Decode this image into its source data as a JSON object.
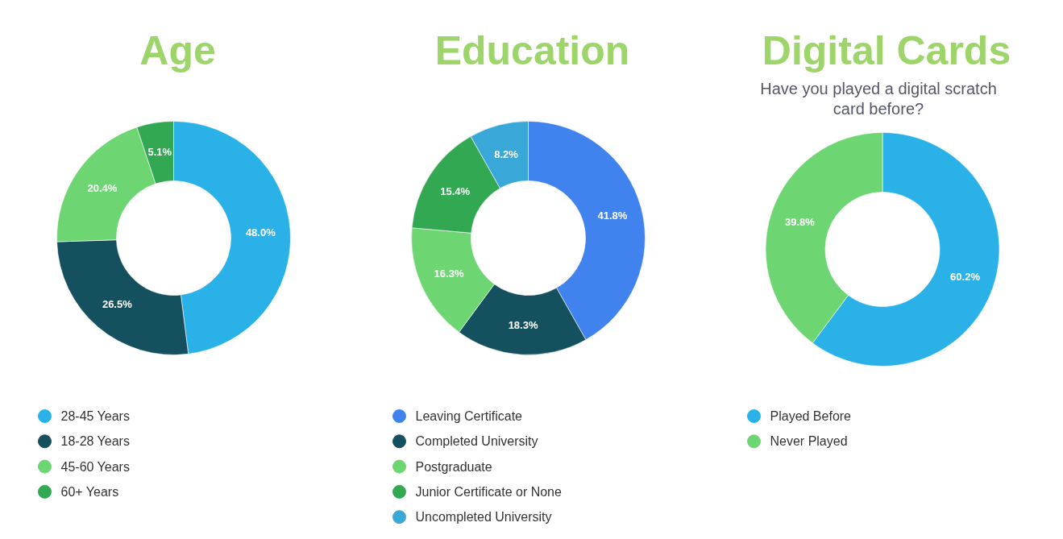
{
  "chart_data": [
    {
      "type": "donut",
      "title": "Age",
      "categories": [
        "28-45 Years",
        "18-28 Years",
        "45-60 Years",
        "60+ Years"
      ],
      "values": [
        48.0,
        26.5,
        20.4,
        5.1
      ],
      "colors": [
        "#29b1e8",
        "#15505f",
        "#6dd672",
        "#33a852"
      ],
      "value_labels": [
        "48.0%",
        "26.5%",
        "20.4%",
        "5.1%"
      ],
      "legend": "bottom"
    },
    {
      "type": "donut",
      "title": "Education",
      "categories": [
        "Leaving Certificate",
        "Completed University",
        "Postgraduate",
        "Junior Certificate or None",
        "Uncompleted University"
      ],
      "values": [
        41.8,
        18.3,
        16.3,
        15.4,
        8.2
      ],
      "colors": [
        "#4183ee",
        "#15505f",
        "#6dd672",
        "#33a852",
        "#3aa7d9"
      ],
      "value_labels": [
        "41.8%",
        "18.3%",
        "16.3%",
        "15.4%",
        "8.2%"
      ],
      "legend": "bottom"
    },
    {
      "type": "donut",
      "title": "Digital Cards",
      "subtitle": "Have you played a digital scratch card before?",
      "categories": [
        "Played Before",
        "Never Played"
      ],
      "values": [
        60.2,
        39.8
      ],
      "colors": [
        "#29b1e8",
        "#6dd672"
      ],
      "value_labels": [
        "60.2%",
        "39.8%"
      ],
      "legend": "bottom"
    }
  ]
}
